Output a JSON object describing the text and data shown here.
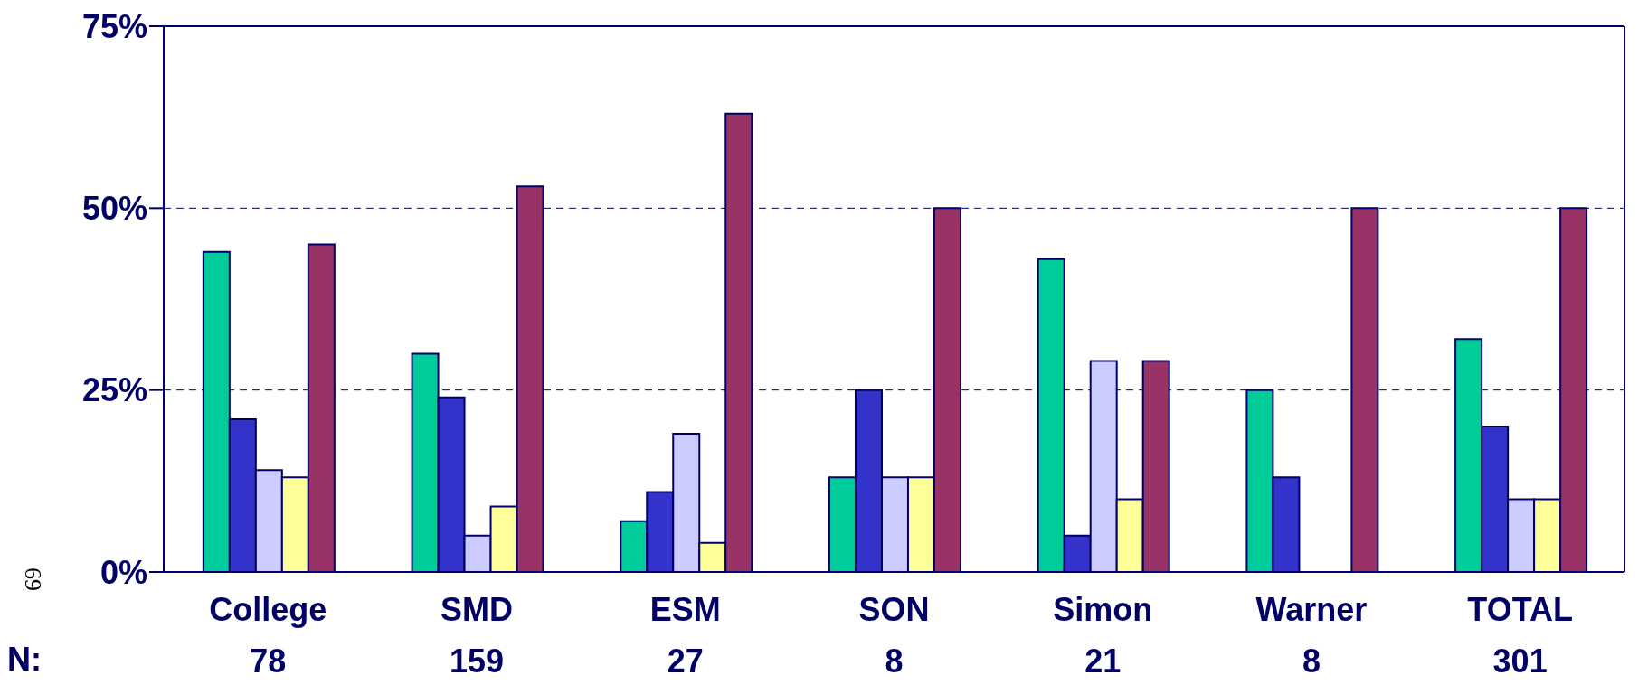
{
  "chart_data": {
    "type": "bar",
    "categories": [
      "College",
      "SMD",
      "ESM",
      "SON",
      "Simon",
      "Warner",
      "TOTAL"
    ],
    "series": [
      {
        "color": "#00cc99",
        "values": [
          44,
          30,
          7,
          13,
          43,
          25,
          32
        ]
      },
      {
        "color": "#3333cc",
        "values": [
          21,
          24,
          11,
          25,
          5,
          13,
          20
        ]
      },
      {
        "color": "#ccccff",
        "values": [
          14,
          5,
          19,
          13,
          29,
          null,
          10
        ]
      },
      {
        "color": "#ffff99",
        "values": [
          13,
          9,
          4,
          13,
          10,
          null,
          10
        ]
      },
      {
        "color": "#993366",
        "values": [
          45,
          53,
          63,
          50,
          29,
          50,
          50
        ]
      }
    ],
    "ylim": [
      0,
      75
    ],
    "yticks": [
      {
        "value": 0,
        "label": "0%"
      },
      {
        "value": 25,
        "label": "25%"
      },
      {
        "value": 50,
        "label": "50%"
      },
      {
        "value": 75,
        "label": "75%"
      }
    ],
    "grid": "y",
    "legend": false,
    "annotations": [
      "N:",
      "69",
      "78",
      "159",
      "27",
      "8",
      "21",
      "8",
      "301"
    ]
  }
}
